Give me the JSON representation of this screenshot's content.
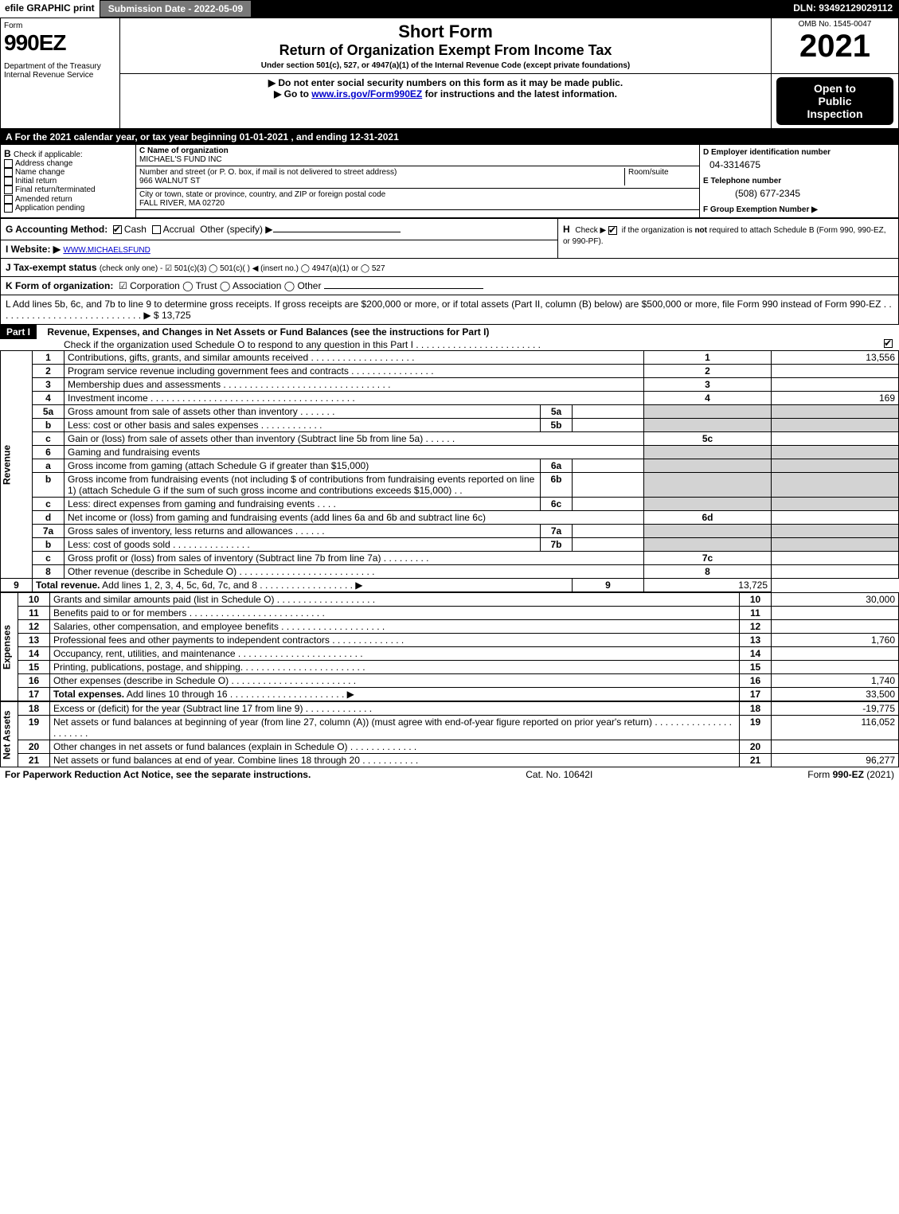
{
  "topbar": {
    "efile": "efile GRAPHIC print",
    "subdate_label": "Submission Date - 2022-05-09",
    "dln": "DLN: 93492129029112"
  },
  "header": {
    "form_word": "Form",
    "form_num": "990EZ",
    "dept": "Department of the Treasury",
    "irs": "Internal Revenue Service",
    "short_form": "Short Form",
    "title": "Return of Organization Exempt From Income Tax",
    "subtitle": "Under section 501(c), 527, or 4947(a)(1) of the Internal Revenue Code (except private foundations)",
    "warn": "▶ Do not enter social security numbers on this form as it may be made public.",
    "goto": "▶ Go to ",
    "goto_link": "www.irs.gov/Form990EZ",
    "goto_tail": " for instructions and the latest information.",
    "omb": "OMB No. 1545-0047",
    "year": "2021",
    "open1": "Open to",
    "open2": "Public",
    "open3": "Inspection"
  },
  "sectionA": {
    "A_text": "For the 2021 calendar year, or tax year beginning 01-01-2021 , and ending 12-31-2021",
    "B_label": "Check if applicable:",
    "B_opts": [
      "Address change",
      "Name change",
      "Initial return",
      "Final return/terminated",
      "Amended return",
      "Application pending"
    ],
    "C_label": "C Name of organization",
    "C_name": "MICHAEL'S FUND INC",
    "C_street_lbl": "Number and street (or P. O. box, if mail is not delivered to street address)",
    "C_room": "Room/suite",
    "C_street": "966 WALNUT ST",
    "C_city_lbl": "City or town, state or province, country, and ZIP or foreign postal code",
    "C_city": "FALL RIVER, MA  02720",
    "D_label": "D Employer identification number",
    "D_val": "04-3314675",
    "E_label": "E Telephone number",
    "E_val": "(508) 677-2345",
    "F_label": "F Group Exemption Number  ▶"
  },
  "mid": {
    "G_label": "G Accounting Method:",
    "G_cash": "Cash",
    "G_accrual": "Accrual",
    "G_other": "Other (specify) ▶",
    "H_text": "Check ▶  ☑  if the organization is not required to attach Schedule B (Form 990, 990-EZ, or 990-PF).",
    "H_label": "H",
    "I_label": "I Website: ▶",
    "I_val": "WWW.MICHAELSFUND",
    "J_label": "J Tax-exempt status ",
    "J_tiny": "(check only one) - ",
    "J_opts": "☑ 501(c)(3)  ◯ 501(c)(  ) ◀ (insert no.)  ◯ 4947(a)(1) or  ◯ 527",
    "K_label": "K Form of organization:",
    "K_opts": "☑ Corporation  ◯ Trust  ◯ Association  ◯ Other",
    "L_text": "L Add lines 5b, 6c, and 7b to line 9 to determine gross receipts. If gross receipts are $200,000 or more, or if total assets (Part II, column (B) below) are $500,000 or more, file Form 990 instead of Form 990-EZ  .  .  .  .  .  .  .  .  .  .  .  .  .  .  .  .  .  .  .  .  .  .  .  .  .  .  .  .  ▶ $ 13,725"
  },
  "part1": {
    "label": "Part I",
    "title": "Revenue, Expenses, and Changes in Net Assets or Fund Balances (see the instructions for Part I)",
    "checkline": "Check if the organization used Schedule O to respond to any question in this Part I .  .  .  .  .  .  .  .  .  .  .  .  .  .  .  .  .  .  .  .  .  .  .  ."
  },
  "sections": {
    "revenue_label": "Revenue",
    "expenses_label": "Expenses",
    "netassets_label": "Net Assets"
  },
  "lines": [
    {
      "n": "1",
      "t": "Contributions, gifts, grants, and similar amounts received  .  .  .  .  .  .  .  .  .  .  .  .  .  .  .  .  .  .  .  .",
      "rn": "1",
      "v": "13,556"
    },
    {
      "n": "2",
      "t": "Program service revenue including government fees and contracts  .  .  .  .  .  .  .  .  .  .  .  .  .  .  .  .",
      "rn": "2",
      "v": ""
    },
    {
      "n": "3",
      "t": "Membership dues and assessments  .  .  .  .  .  .  .  .  .  .  .  .  .  .  .  .  .  .  .  .  .  .  .  .  .  .  .  .  .  .  .  .",
      "rn": "3",
      "v": ""
    },
    {
      "n": "4",
      "t": "Investment income  .  .  .  .  .  .  .  .  .  .  .  .  .  .  .  .  .  .  .  .  .  .  .  .  .  .  .  .  .  .  .  .  .  .  .  .  .  .  .",
      "rn": "4",
      "v": "169"
    },
    {
      "n": "5a",
      "t": "Gross amount from sale of assets other than inventory  .  .  .  .  .  .  .",
      "sub": "5a",
      "grey": true
    },
    {
      "n": "b",
      "t": "Less: cost or other basis and sales expenses  .  .  .  .  .  .  .  .  .  .  .  .",
      "sub": "5b",
      "grey": true
    },
    {
      "n": "c",
      "t": "Gain or (loss) from sale of assets other than inventory (Subtract line 5b from line 5a)  .  .  .  .  .  .",
      "rn": "5c",
      "v": ""
    },
    {
      "n": "6",
      "t": "Gaming and fundraising events",
      "grey": true
    },
    {
      "n": "a",
      "t": "Gross income from gaming (attach Schedule G if greater than $15,000)",
      "sub": "6a",
      "grey": true
    },
    {
      "n": "b",
      "t": "Gross income from fundraising events (not including $                    of contributions from fundraising events reported on line 1) (attach Schedule G if the sum of such gross income and contributions exceeds $15,000)   .   .",
      "sub": "6b",
      "grey": true
    },
    {
      "n": "c",
      "t": "Less: direct expenses from gaming and fundraising events   .  .  .  .",
      "sub": "6c",
      "grey": true
    },
    {
      "n": "d",
      "t": "Net income or (loss) from gaming and fundraising events (add lines 6a and 6b and subtract line 6c)",
      "rn": "6d",
      "v": ""
    },
    {
      "n": "7a",
      "t": "Gross sales of inventory, less returns and allowances  .  .  .  .  .  .",
      "sub": "7a",
      "grey": true
    },
    {
      "n": "b",
      "t": "Less: cost of goods sold          .  .  .  .  .  .  .  .  .  .  .  .  .  .  .",
      "sub": "7b",
      "grey": true
    },
    {
      "n": "c",
      "t": "Gross profit or (loss) from sales of inventory (Subtract line 7b from line 7a)  .  .  .  .  .  .  .  .  .",
      "rn": "7c",
      "v": ""
    },
    {
      "n": "8",
      "t": "Other revenue (describe in Schedule O)  .  .  .  .  .  .  .  .  .  .  .  .  .  .  .  .  .  .  .  .  .  .  .  .  .  .",
      "rn": "8",
      "v": ""
    },
    {
      "n": "9",
      "t": "Total revenue. Add lines 1, 2, 3, 4, 5c, 6d, 7c, and 8  .  .  .  .  .  .  .  .  .  .  .  .  .  .  .  .  .  .  ▶",
      "rn": "9",
      "v": "13,725",
      "bold": true
    }
  ],
  "exp_lines": [
    {
      "n": "10",
      "t": "Grants and similar amounts paid (list in Schedule O)  .  .  .  .  .  .  .  .  .  .  .  .  .  .  .  .  .  .  .",
      "rn": "10",
      "v": "30,000"
    },
    {
      "n": "11",
      "t": "Benefits paid to or for members      .  .  .  .  .  .  .  .  .  .  .  .  .  .  .  .  .  .  .  .  .  .  .  .  .  .",
      "rn": "11",
      "v": ""
    },
    {
      "n": "12",
      "t": "Salaries, other compensation, and employee benefits  .  .  .  .  .  .  .  .  .  .  .  .  .  .  .  .  .  .  .  .",
      "rn": "12",
      "v": ""
    },
    {
      "n": "13",
      "t": "Professional fees and other payments to independent contractors  .  .  .  .  .  .  .  .  .  .  .  .  .  .",
      "rn": "13",
      "v": "1,760"
    },
    {
      "n": "14",
      "t": "Occupancy, rent, utilities, and maintenance .  .  .  .  .  .  .  .  .  .  .  .  .  .  .  .  .  .  .  .  .  .  .  .",
      "rn": "14",
      "v": ""
    },
    {
      "n": "15",
      "t": "Printing, publications, postage, and shipping.  .  .  .  .  .  .  .  .  .  .  .  .  .  .  .  .  .  .  .  .  .  .  .",
      "rn": "15",
      "v": ""
    },
    {
      "n": "16",
      "t": "Other expenses (describe in Schedule O)    .  .  .  .  .  .  .  .  .  .  .  .  .  .  .  .  .  .  .  .  .  .  .  .",
      "rn": "16",
      "v": "1,740"
    },
    {
      "n": "17",
      "t": "Total expenses. Add lines 10 through 16     .  .  .  .  .  .  .  .  .  .  .  .  .  .  .  .  .  .  .  .  .  .  ▶",
      "rn": "17",
      "v": "33,500",
      "bold": true
    }
  ],
  "net_lines": [
    {
      "n": "18",
      "t": "Excess or (deficit) for the year (Subtract line 17 from line 9)        .  .  .  .  .  .  .  .  .  .  .  .  .",
      "rn": "18",
      "v": "-19,775"
    },
    {
      "n": "19",
      "t": "Net assets or fund balances at beginning of year (from line 27, column (A)) (must agree with end-of-year figure reported on prior year's return) .  .  .  .  .  .  .  .  .  .  .  .  .  .  .  .  .  .  .  .  .  .",
      "rn": "19",
      "v": "116,052"
    },
    {
      "n": "20",
      "t": "Other changes in net assets or fund balances (explain in Schedule O) .  .  .  .  .  .  .  .  .  .  .  .  .",
      "rn": "20",
      "v": ""
    },
    {
      "n": "21",
      "t": "Net assets or fund balances at end of year. Combine lines 18 through 20  .  .  .  .  .  .  .  .  .  .  .",
      "rn": "21",
      "v": "96,277"
    }
  ],
  "footer": {
    "left": "For Paperwork Reduction Act Notice, see the separate instructions.",
    "mid": "Cat. No. 10642I",
    "right_pre": "Form ",
    "right_bold": "990-EZ",
    "right_post": " (2021)"
  }
}
